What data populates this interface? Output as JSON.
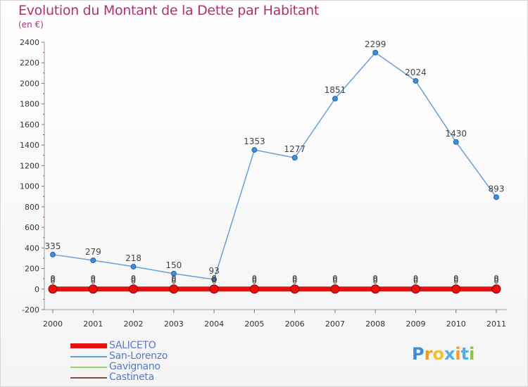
{
  "colors": {
    "title": "#b0306e",
    "legend_text": "#5a78c8",
    "axis": "#999999",
    "tick_text": "#333333"
  },
  "logo": {
    "text": "Proxiti",
    "letters": [
      {
        "ch": "P",
        "color": "#3a8fd8"
      },
      {
        "ch": "r",
        "color": "#f39a2b"
      },
      {
        "ch": "o",
        "color": "#f3c12b"
      },
      {
        "ch": "x",
        "color": "#4fb0e8"
      },
      {
        "ch": "i",
        "color": "#f39a2b"
      },
      {
        "ch": "t",
        "color": "#4fb0e8"
      },
      {
        "ch": "i",
        "color": "#8bc34a"
      }
    ]
  },
  "chart_data": {
    "type": "line",
    "title": "Evolution du Montant de la Dette par Habitant",
    "subtitle": "(en €)",
    "xlabel": "",
    "ylabel": "",
    "x": [
      "2000",
      "2001",
      "2002",
      "2003",
      "2004",
      "2005",
      "2006",
      "2007",
      "2008",
      "2009",
      "2010",
      "2011"
    ],
    "ylim": [
      -200,
      2400
    ],
    "yticks": [
      -200,
      0,
      200,
      400,
      600,
      800,
      1000,
      1200,
      1400,
      1600,
      1800,
      2000,
      2200,
      2400
    ],
    "grid": false,
    "legend_position": "bottom-left",
    "series": [
      {
        "name": "SALICETO",
        "color": "#e8100c",
        "values": [
          0,
          0,
          0,
          0,
          0,
          0,
          0,
          0,
          0,
          0,
          0,
          0
        ],
        "labels": [
          "0",
          "0",
          "0",
          "0",
          "0",
          "0",
          "0",
          "0",
          "0",
          "0",
          "0",
          "0"
        ]
      },
      {
        "name": "San-Lorenzo",
        "color": "#6aa0d8",
        "values": [
          335,
          279,
          218,
          150,
          93,
          1353,
          1277,
          1851,
          2299,
          2024,
          1430,
          893
        ],
        "labels": [
          "335",
          "279",
          "218",
          "150",
          "93",
          "1353",
          "1277",
          "1851",
          "2299",
          "2024",
          "1430",
          "893"
        ]
      },
      {
        "name": "Gavignano",
        "color": "#8ed46a",
        "values": [
          0,
          0,
          0,
          0,
          0,
          0,
          0,
          0,
          0,
          0,
          0,
          0
        ],
        "labels": [
          "0",
          "0",
          "0",
          "0",
          "0",
          "0",
          "0",
          "0",
          "0",
          "0",
          "0",
          "0"
        ]
      },
      {
        "name": "Castineta",
        "color": "#8a4a4a",
        "values": [
          0,
          0,
          0,
          0,
          0,
          0,
          0,
          0,
          0,
          0,
          0,
          0
        ],
        "labels": [
          "0",
          "0",
          "0",
          "0",
          "0",
          "0",
          "0",
          "0",
          "0",
          "0",
          "0",
          "0"
        ]
      }
    ]
  }
}
